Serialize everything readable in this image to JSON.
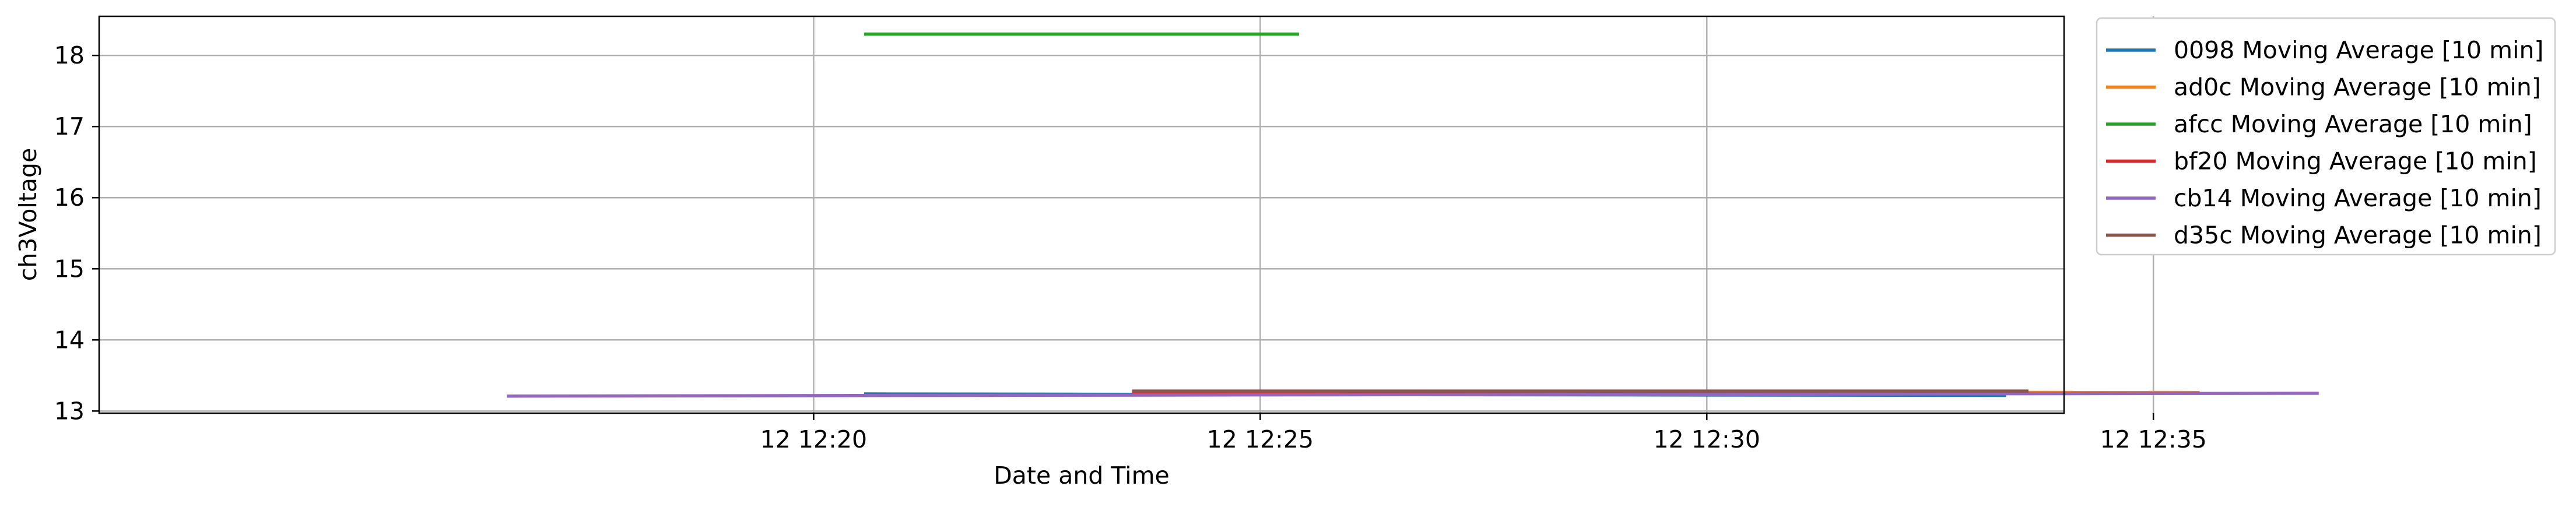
{
  "chart_data": {
    "type": "line",
    "xlabel": "Date and Time",
    "ylabel": "ch3Voltage",
    "xlim_minutes": [
      12.0,
      34.0
    ],
    "ylim": [
      12.97,
      18.55
    ],
    "x_ticks": [
      {
        "value": 20,
        "label": "12 12:20"
      },
      {
        "value": 25,
        "label": "12 12:25"
      },
      {
        "value": 30,
        "label": "12 12:30"
      },
      {
        "value": 35,
        "label": "12 12:35"
      }
    ],
    "y_ticks": [
      13,
      14,
      15,
      16,
      17,
      18
    ],
    "grid": true,
    "legend_position": "outside-right",
    "series": [
      {
        "name": "0098 Moving Average [10 min]",
        "color": "#1f77b4",
        "x": [
          "12:20:35",
          "12:33:20"
        ],
        "y": [
          13.24,
          13.22
        ]
      },
      {
        "name": "ad0c Moving Average [10 min]",
        "color": "#ff7f0e",
        "x": [
          "12:23:35",
          "12:35:30"
        ],
        "y": [
          13.27,
          13.26
        ]
      },
      {
        "name": "afcc Moving Average [10 min]",
        "color": "#2ca02c",
        "x": [
          "12:20:35",
          "12:25:25"
        ],
        "y": [
          18.3,
          18.3
        ]
      },
      {
        "name": "bf20 Moving Average [10 min]",
        "color": "#d62728",
        "x": [
          "12:23:35",
          "12:33:35"
        ],
        "y": [
          13.27,
          13.27
        ]
      },
      {
        "name": "cb14 Moving Average [10 min]",
        "color": "#9467bd",
        "x": [
          "12:16:35",
          "12:36:50"
        ],
        "y": [
          13.21,
          13.25
        ]
      },
      {
        "name": "d35c Moving Average [10 min]",
        "color": "#8c564b",
        "x": [
          "12:23:35",
          "12:33:35"
        ],
        "y": [
          13.28,
          13.28
        ]
      }
    ]
  }
}
